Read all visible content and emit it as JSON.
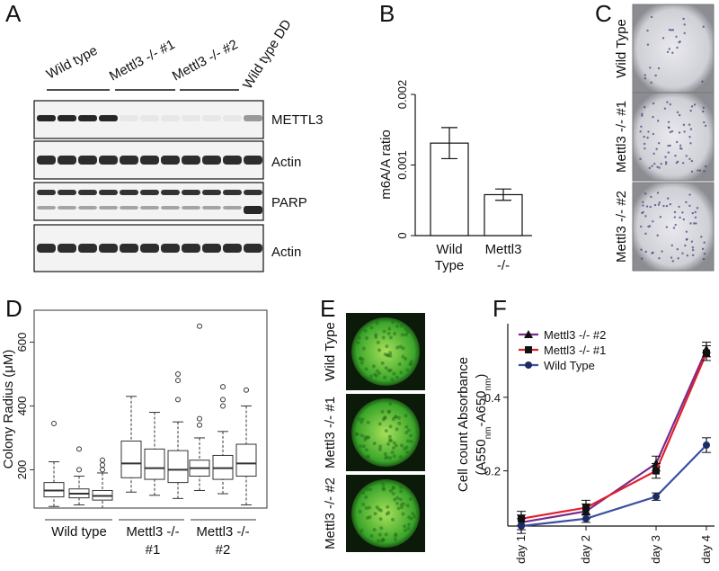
{
  "panel_letters": [
    "A",
    "B",
    "C",
    "D",
    "E",
    "F"
  ],
  "panel_a": {
    "lanes": [
      "Wild type",
      "Mettl3 -/- #1",
      "Mettl3 -/- #2",
      "Wild type DD"
    ],
    "blots": [
      "METTL3",
      "Actin",
      "PARP",
      "Actin"
    ]
  },
  "panel_c": {
    "labels": [
      "Wild Type",
      "Mettl3 -/- #1",
      "Mettl3 -/- #2"
    ]
  },
  "panel_e": {
    "labels": [
      "Wild Type",
      "Mettl3 -/- #1",
      "Mettl3 -/- #2"
    ]
  },
  "chart_data": [
    {
      "type": "bar",
      "y_label": "m6A/A ratio",
      "categories": [
        [
          "Wild",
          "Type"
        ],
        [
          "Mettl3",
          "-/-"
        ]
      ],
      "values": [
        0.00131,
        0.00058
      ],
      "errors": [
        0.00022,
        8e-05
      ],
      "ylim": [
        0,
        0.002
      ],
      "yticks": [
        0,
        0.001,
        0.002
      ],
      "color": "#ffffff"
    },
    {
      "type": "box",
      "y_label": "Colony Radius (μM)",
      "groups": [
        [
          "Wild type"
        ],
        [
          "Mettl3 -/-",
          "#1"
        ],
        [
          "Mettl3 -/-",
          "#2"
        ]
      ],
      "boxes": [
        {
          "low": 85,
          "q1": 115,
          "median": 135,
          "q3": 160,
          "high": 225,
          "outliers": [
            345
          ]
        },
        {
          "low": 90,
          "q1": 112,
          "median": 125,
          "q3": 140,
          "high": 180,
          "outliers": [
            265,
            200
          ]
        },
        {
          "low": 80,
          "q1": 105,
          "median": 118,
          "q3": 135,
          "high": 190,
          "outliers": [
            200,
            215,
            230
          ]
        },
        {
          "low": 130,
          "q1": 175,
          "median": 220,
          "q3": 290,
          "high": 430,
          "outliers": []
        },
        {
          "low": 120,
          "q1": 170,
          "median": 205,
          "q3": 265,
          "high": 380,
          "outliers": []
        },
        {
          "low": 110,
          "q1": 160,
          "median": 200,
          "q3": 260,
          "high": 350,
          "outliers": [
            420,
            480,
            500
          ]
        },
        {
          "low": 135,
          "q1": 180,
          "median": 205,
          "q3": 230,
          "high": 300,
          "outliers": [
            340,
            360,
            650
          ]
        },
        {
          "low": 125,
          "q1": 170,
          "median": 205,
          "q3": 245,
          "high": 320,
          "outliers": [
            400,
            420,
            460
          ]
        },
        {
          "low": 90,
          "q1": 180,
          "median": 220,
          "q3": 280,
          "high": 400,
          "outliers": [
            450
          ]
        }
      ],
      "ylim": [
        80,
        700
      ],
      "yticks": [
        200,
        400,
        600
      ]
    },
    {
      "type": "line",
      "y_label": {
        "text": "Cell count Absorbance",
        "parts": [
          "(A550",
          "nm",
          "-A650",
          "nm",
          ")"
        ]
      },
      "categories": [
        "day 1",
        "day 2",
        "day 3",
        "day 4"
      ],
      "series": [
        {
          "name": "Mettl3 -/- #2",
          "color": "#7b2a8c",
          "marker": "triangle",
          "values": [
            0.06,
            0.09,
            0.22,
            0.53
          ],
          "errors": [
            0.02,
            0.02,
            0.02,
            0.02
          ]
        },
        {
          "name": "Mettl3 -/- #1",
          "color": "#e0202a",
          "marker": "square",
          "values": [
            0.07,
            0.1,
            0.2,
            0.52
          ],
          "errors": [
            0.02,
            0.02,
            0.02,
            0.02
          ]
        },
        {
          "name": "Wild Type",
          "color": "#3a4fa0",
          "marker": "circle",
          "values": [
            0.05,
            0.07,
            0.13,
            0.27
          ],
          "errors": [
            0.02,
            0.01,
            0.01,
            0.02
          ]
        }
      ],
      "ylim": [
        0.05,
        0.6
      ],
      "yticks": [
        0.2,
        0.4
      ],
      "legend": "top-left"
    }
  ]
}
